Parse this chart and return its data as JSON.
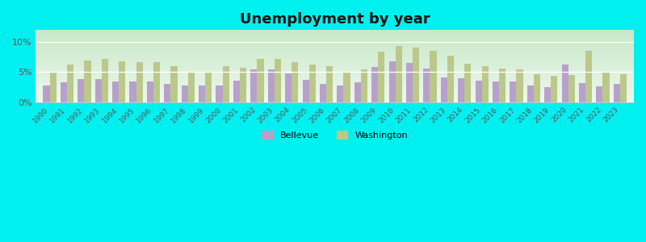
{
  "title": "Unemployment by year",
  "years": [
    1990,
    1991,
    1992,
    1993,
    1994,
    1995,
    1996,
    1997,
    1998,
    1999,
    2000,
    2001,
    2002,
    2003,
    2004,
    2005,
    2006,
    2007,
    2008,
    2009,
    2010,
    2011,
    2012,
    2013,
    2014,
    2015,
    2016,
    2017,
    2018,
    2019,
    2020,
    2021,
    2022,
    2023
  ],
  "bellevue": [
    2.7,
    3.3,
    3.9,
    3.9,
    3.5,
    3.5,
    3.4,
    3.1,
    2.8,
    2.7,
    2.8,
    3.6,
    5.5,
    5.5,
    4.8,
    3.7,
    3.0,
    2.8,
    3.3,
    5.9,
    6.8,
    6.5,
    5.6,
    4.1,
    4.0,
    3.6,
    3.5,
    3.4,
    2.8,
    2.5,
    6.2,
    3.2,
    2.6,
    3.0
  ],
  "washington": [
    5.0,
    6.3,
    7.0,
    7.2,
    6.8,
    6.7,
    6.6,
    6.0,
    5.0,
    5.1,
    6.0,
    5.7,
    7.2,
    7.2,
    6.7,
    6.3,
    6.0,
    5.0,
    5.5,
    8.4,
    9.4,
    9.1,
    8.5,
    7.7,
    6.4,
    6.0,
    5.6,
    5.5,
    4.7,
    4.4,
    4.5,
    8.5,
    5.1,
    4.7
  ],
  "bellevue_color": "#b8a0cc",
  "washington_color": "#bcc88a",
  "background_outer": "#00f0f0",
  "bg_top": "#c8e8c8",
  "bg_bottom": "#eef8ee",
  "ylim": [
    0,
    12
  ],
  "yticks": [
    0,
    5,
    10
  ],
  "ytick_labels": [
    "0%",
    "5%",
    "10%"
  ],
  "title_fontsize": 13,
  "bar_width": 0.38,
  "legend_labels": [
    "Bellevue",
    "Washington"
  ]
}
